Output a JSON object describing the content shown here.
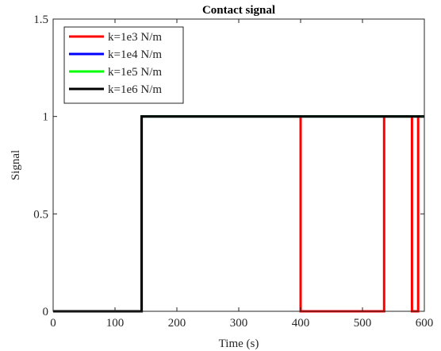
{
  "chart_data": {
    "type": "line",
    "title": "Contact signal",
    "xlabel": "Time (s)",
    "ylabel": "Signal",
    "xlim": [
      0,
      600
    ],
    "ylim": [
      0,
      1.5
    ],
    "xticks": [
      0,
      100,
      200,
      300,
      400,
      500,
      600
    ],
    "yticks": [
      0,
      0.5,
      1,
      1.5
    ],
    "xtick_labels": [
      "0",
      "100",
      "200",
      "300",
      "400",
      "500",
      "600"
    ],
    "ytick_labels": [
      "0",
      "0.5",
      "1",
      "1.5"
    ],
    "grid": false,
    "legend_position": "top-left",
    "series": [
      {
        "name": "k=1e3 N/m",
        "color": "#ff0000",
        "points": [
          [
            0,
            0
          ],
          [
            143,
            0
          ],
          [
            143,
            1
          ],
          [
            400,
            1
          ],
          [
            400,
            0
          ],
          [
            535,
            0
          ],
          [
            535,
            1
          ],
          [
            580,
            1
          ],
          [
            580,
            0
          ],
          [
            590,
            0
          ],
          [
            590,
            1
          ],
          [
            600,
            1
          ]
        ]
      },
      {
        "name": "k=1e4 N/m",
        "color": "#0000ff",
        "points": [
          [
            0,
            0
          ],
          [
            143,
            0
          ],
          [
            143,
            1
          ],
          [
            600,
            1
          ]
        ]
      },
      {
        "name": "k=1e5 N/m",
        "color": "#00ff00",
        "points": [
          [
            0,
            0
          ],
          [
            143,
            0
          ],
          [
            143,
            1
          ],
          [
            600,
            1
          ]
        ]
      },
      {
        "name": "k=1e6 N/m",
        "color": "#000000",
        "points": [
          [
            0,
            0
          ],
          [
            143,
            0
          ],
          [
            143,
            1
          ],
          [
            600,
            1
          ]
        ]
      }
    ]
  }
}
